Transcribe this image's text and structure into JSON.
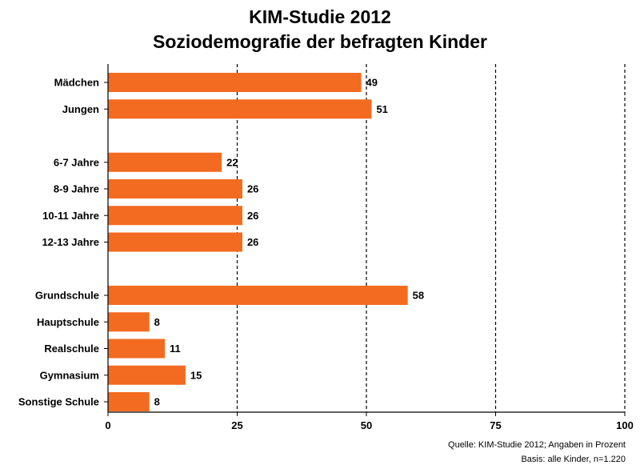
{
  "chart_data": {
    "type": "bar",
    "orientation": "horizontal",
    "title": [
      "KIM-Studie 2012",
      "Soziodemografie der befragten Kinder"
    ],
    "categories": [
      "Mädchen",
      "Jungen",
      "",
      "6-7 Jahre",
      "8-9 Jahre",
      "10-11 Jahre",
      "12-13 Jahre",
      "",
      "Grundschule",
      "Hauptschule",
      "Realschule",
      "Gymnasium",
      "Sonstige Schule"
    ],
    "values": [
      49,
      51,
      null,
      22,
      26,
      26,
      26,
      null,
      58,
      8,
      11,
      15,
      8
    ],
    "xlim": [
      0,
      100
    ],
    "xticks": [
      0,
      25,
      50,
      75,
      100
    ],
    "grid": "vertical dashed",
    "bar_color": "#F26B21",
    "notes": [
      "Quelle: KIM-Studie 2012; Angaben in Prozent",
      "Basis: alle Kinder, n=1.220"
    ]
  }
}
